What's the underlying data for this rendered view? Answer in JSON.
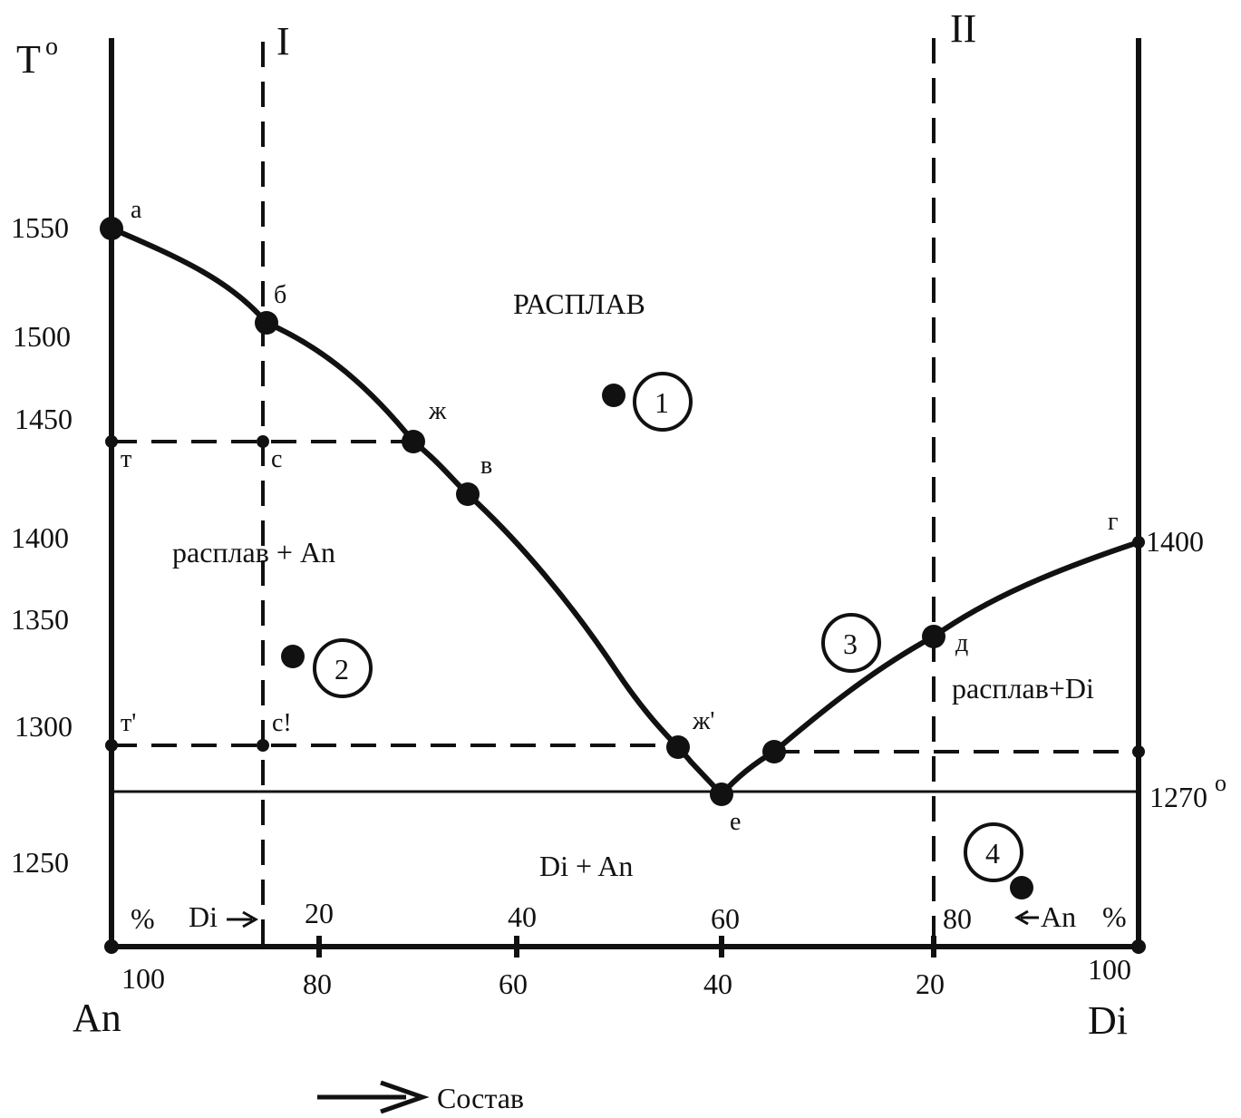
{
  "colors": {
    "ink": "#111111",
    "background": "#ffffff"
  },
  "axis": {
    "temperature_label": "T",
    "temperature_label_sup": "o",
    "y_ticks": [
      "1550",
      "1500",
      "1450",
      "1400",
      "1350",
      "1300",
      "1250"
    ],
    "right_value_top": "1400",
    "eutectic_value": "1270",
    "eutectic_value_sup": "o",
    "di_scale_start": "%",
    "di_scale_label": "Di",
    "di_ticks": [
      "20",
      "40",
      "60",
      "80"
    ],
    "an_scale_label": "An",
    "an_scale_end": "%",
    "an_ticks": [
      "100",
      "80",
      "60",
      "40",
      "20",
      "100"
    ],
    "left_end": "An",
    "right_end": "Di",
    "composition_label": "Состав"
  },
  "verticals": {
    "one": "I",
    "two": "II"
  },
  "fields": {
    "melt": "РАСПЛАВ",
    "melt_an": "расплав + An",
    "melt_di": "расплав+Di",
    "solid": "Di + An"
  },
  "points": {
    "a": "а",
    "b": "б",
    "zh": "ж",
    "v": "в",
    "t": "т",
    "s": "с",
    "g": "г",
    "d": "д",
    "t2": "т'",
    "s2": "с!",
    "zh2": "ж'",
    "e": "е"
  },
  "markers": {
    "m1": "1",
    "m2": "2",
    "m3": "3",
    "m4": "4"
  }
}
